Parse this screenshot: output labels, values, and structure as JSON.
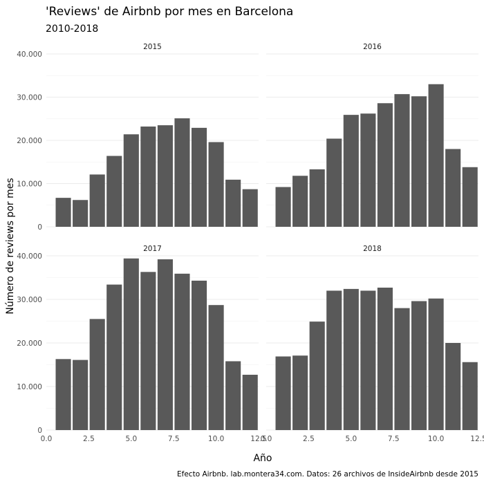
{
  "chart_data": {
    "type": "bar",
    "title": "'Reviews' de Airbnb por mes en Barcelona",
    "subtitle": "2010-2018",
    "xlabel": "Año",
    "ylabel": "Número de reviews por mes",
    "caption": "Efecto Airbnb. lab.montera34.com. Datos: 26 archivos de InsideAirbnb desde 2015",
    "xlim": [
      0,
      12.5
    ],
    "ylim": [
      0,
      40000
    ],
    "x_ticks": [
      "0.0",
      "2.5",
      "5.0",
      "7.5",
      "10.0",
      "12.5"
    ],
    "y_ticks": [
      "0",
      "10.000",
      "20.000",
      "30.000",
      "40.000"
    ],
    "bar_color": "#595959",
    "grid": true,
    "facets": [
      {
        "label": "2015",
        "x": [
          1,
          2,
          3,
          4,
          5,
          6,
          7,
          8,
          9,
          10,
          11,
          12
        ],
        "values": [
          6700,
          6200,
          12100,
          16400,
          21400,
          23200,
          23500,
          25100,
          22900,
          19600,
          10900,
          8700
        ]
      },
      {
        "label": "2016",
        "x": [
          1,
          2,
          3,
          4,
          5,
          6,
          7,
          8,
          9,
          10,
          11,
          12
        ],
        "values": [
          9200,
          11800,
          13300,
          20400,
          25900,
          26200,
          28600,
          30700,
          30200,
          33000,
          18000,
          13800
        ]
      },
      {
        "label": "2017",
        "x": [
          1,
          2,
          3,
          4,
          5,
          6,
          7,
          8,
          9,
          10,
          11,
          12
        ],
        "values": [
          16300,
          16100,
          25500,
          33400,
          39400,
          36300,
          39200,
          35900,
          34300,
          28700,
          15800,
          12700
        ]
      },
      {
        "label": "2018",
        "x": [
          1,
          2,
          3,
          4,
          5,
          6,
          7,
          8,
          9,
          10,
          11,
          12
        ],
        "values": [
          16900,
          17100,
          24900,
          32000,
          32400,
          32000,
          32700,
          28000,
          29600,
          30200,
          20000,
          15600
        ]
      }
    ]
  }
}
